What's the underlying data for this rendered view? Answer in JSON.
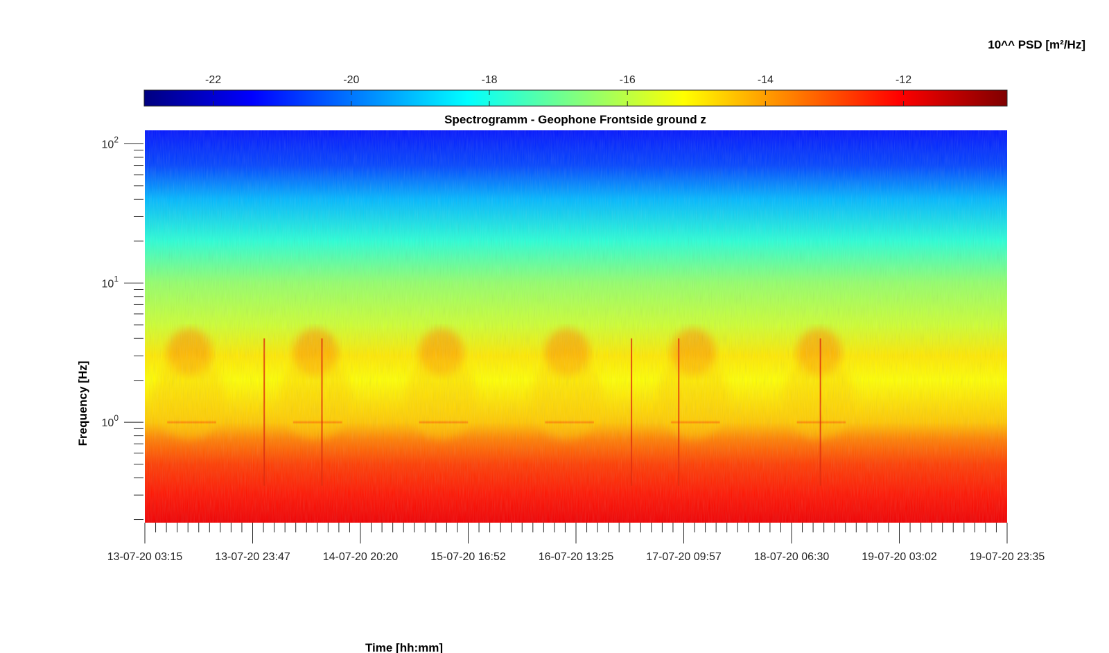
{
  "chart_data": {
    "type": "heatmap",
    "title": "Spectrogramm - Geophone Frontside ground z",
    "xlabel": "Time [hh:mm]",
    "ylabel": "Frequency [Hz]",
    "yscale": "log",
    "ylim": [
      0.19,
      125
    ],
    "x_tick_labels": [
      "13-07-20 03:15",
      "13-07-20 23:47",
      "14-07-20 20:20",
      "15-07-20 16:52",
      "16-07-20 13:25",
      "17-07-20 09:57",
      "18-07-20 06:30",
      "19-07-20 03:02",
      "19-07-20 23:35"
    ],
    "y_ticks": [
      {
        "value": 1,
        "base": "10",
        "exponent": "0"
      },
      {
        "value": 10,
        "base": "10",
        "exponent": "1"
      },
      {
        "value": 100,
        "base": "10",
        "exponent": "2"
      }
    ],
    "colorbar": {
      "label": "10^^ PSD [m²/Hz]",
      "colormap": "jet",
      "range": [
        -23,
        -10.5
      ],
      "ticks": [
        "-22",
        "-20",
        "-18",
        "-16",
        "-14",
        "-12"
      ],
      "tick_values": [
        -22,
        -20,
        -18,
        -16,
        -14,
        -12
      ],
      "placement": "top"
    },
    "psd_profile": [
      {
        "freq": 0.2,
        "value": -11.9
      },
      {
        "freq": 0.3,
        "value": -12.3
      },
      {
        "freq": 0.5,
        "value": -12.8
      },
      {
        "freq": 0.75,
        "value": -13.6
      },
      {
        "freq": 1.0,
        "value": -14.5
      },
      {
        "freq": 2.0,
        "value": -15.2
      },
      {
        "freq": 3.0,
        "value": -14.9
      },
      {
        "freq": 5.0,
        "value": -15.8
      },
      {
        "freq": 10.0,
        "value": -16.5
      },
      {
        "freq": 20.0,
        "value": -17.8
      },
      {
        "freq": 40.0,
        "value": -19.2
      },
      {
        "freq": 70.0,
        "value": -20.6
      },
      {
        "freq": 125.0,
        "value": -21.2
      }
    ],
    "daily_activity": [
      {
        "start": "13-07-20 07:30",
        "end": "13-07-20 16:00"
      },
      {
        "start": "14-07-20 07:30",
        "end": "14-07-20 16:00"
      },
      {
        "start": "15-07-20 07:30",
        "end": "15-07-20 16:00"
      },
      {
        "start": "16-07-20 07:30",
        "end": "16-07-20 16:00"
      },
      {
        "start": "17-07-20 07:30",
        "end": "17-07-20 16:00"
      },
      {
        "start": "18-07-20 07:30",
        "end": "18-07-20 16:00"
      }
    ],
    "grid": false
  },
  "colors": {
    "axis": "#262626",
    "background": "#ffffff"
  }
}
